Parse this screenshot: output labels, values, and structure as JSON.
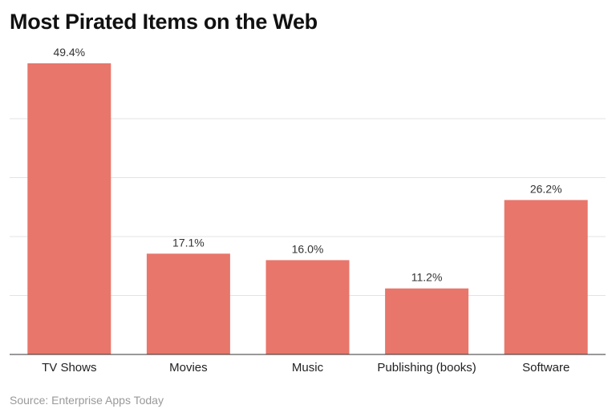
{
  "chart_data": {
    "type": "bar",
    "title": "Most Pirated Items on the Web",
    "categories": [
      "TV Shows",
      "Movies",
      "Music",
      "Publishing (books)",
      "Software"
    ],
    "values": [
      49.4,
      17.1,
      16.0,
      11.2,
      26.2
    ],
    "data_labels": [
      "49.4%",
      "17.1%",
      "16.0%",
      "11.2%",
      "26.2%"
    ],
    "xlabel": "",
    "ylabel": "",
    "ylim": [
      0,
      50
    ],
    "grid": true,
    "bar_color": "#e8766b",
    "source": "Source: Enterprise Apps Today"
  }
}
